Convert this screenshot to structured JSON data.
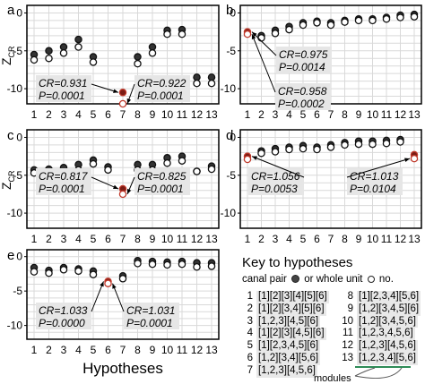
{
  "chart_data": [
    {
      "panel": "a",
      "type": "scatter",
      "ylabel": "Z",
      "ylabel_sub": "CR",
      "x": [
        1,
        2,
        3,
        4,
        5,
        6,
        7,
        8,
        9,
        10,
        11,
        12,
        13
      ],
      "ylim": [
        -12,
        1
      ],
      "yticks": [
        0,
        -5,
        -10
      ],
      "series": [
        {
          "values": [
            -5.5,
            -5.0,
            -4.5,
            -3.5,
            -5.8,
            null,
            -10.5,
            -5.8,
            -4.5,
            -2.3,
            -2.2,
            -8.5,
            -8.5
          ]
        },
        {
          "values": [
            -6.2,
            -6.0,
            -5.3,
            -4.5,
            -6.5,
            null,
            -12.0,
            -6.7,
            -5.3,
            -2.8,
            -2.8,
            -9.3,
            -9.3
          ]
        }
      ],
      "annotations": [
        {
          "text": [
            "CR=0.931",
            "P=0.0001"
          ],
          "target": 7
        },
        {
          "text": [
            "CR=0.922",
            "P=0.0001"
          ],
          "target": 7
        }
      ],
      "highlight_x": 7
    },
    {
      "panel": "b",
      "type": "scatter",
      "ylabel": "",
      "x": [
        1,
        2,
        3,
        4,
        5,
        6,
        7,
        8,
        9,
        10,
        11,
        12,
        13
      ],
      "ylim": [
        -12,
        1
      ],
      "yticks": [
        0,
        -5,
        -10
      ],
      "series": [
        {
          "values": [
            -2.5,
            -3.0,
            -2.3,
            -1.8,
            -1.3,
            -1.1,
            -1.3,
            -1.0,
            -0.8,
            -0.8,
            -0.6,
            -0.3,
            -0.2
          ]
        },
        {
          "values": [
            -2.8,
            -3.3,
            -2.7,
            -2.2,
            -1.6,
            -1.3,
            -1.6,
            -1.2,
            -1.0,
            -1.0,
            -0.8,
            -0.6,
            -0.5
          ]
        }
      ],
      "annotations": [
        {
          "text": [
            "CR=0.975",
            "P=0.0014"
          ],
          "target": 1
        },
        {
          "text": [
            "CR=0.958",
            "P=0.0002"
          ],
          "target": 1
        }
      ],
      "highlight_x": 1
    },
    {
      "panel": "c",
      "type": "scatter",
      "ylabel": "Z",
      "ylabel_sub": "CR",
      "x": [
        1,
        2,
        3,
        4,
        5,
        6,
        7,
        8,
        9,
        10,
        11,
        12,
        13
      ],
      "ylim": [
        -12,
        1
      ],
      "yticks": [
        0,
        -5,
        -10
      ],
      "series": [
        {
          "values": [
            -4.3,
            -4.2,
            -4.0,
            -3.6,
            -3.0,
            -3.9,
            -6.8,
            -3.6,
            -3.6,
            -2.7,
            -2.5,
            -4.5,
            -3.8
          ]
        },
        {
          "values": [
            -4.7,
            -4.7,
            -4.7,
            -4.3,
            -3.5,
            -4.3,
            -7.5,
            -4.3,
            -4.3,
            -3.4,
            -3.1,
            -4.5,
            -4.2
          ]
        }
      ],
      "annotations": [
        {
          "text": [
            "CR=0.817",
            "P=0.0001"
          ],
          "target": 7
        },
        {
          "text": [
            "CR=0.825",
            "P=0.0001"
          ],
          "target": 7
        }
      ],
      "highlight_x": 7
    },
    {
      "panel": "d",
      "type": "scatter",
      "ylabel": "",
      "x": [
        1,
        2,
        3,
        4,
        5,
        6,
        7,
        8,
        9,
        10,
        11,
        12,
        13
      ],
      "ylim": [
        -12,
        1
      ],
      "yticks": [
        0,
        -5,
        -10
      ],
      "series": [
        {
          "values": [
            -2.5,
            -1.8,
            -1.5,
            -1.3,
            -1.1,
            -1.3,
            -1.0,
            -0.7,
            -0.5,
            -0.5,
            -0.4,
            -0.3,
            -2.3
          ]
        },
        {
          "values": [
            -2.9,
            -2.1,
            -1.9,
            -1.6,
            -1.5,
            -1.6,
            -1.3,
            -1.0,
            -0.9,
            -0.9,
            -0.8,
            -0.6,
            -2.8
          ]
        }
      ],
      "annotations": [
        {
          "text": [
            "CR=1.056",
            "P=0.0053"
          ],
          "target": 1
        },
        {
          "text": [
            "CR=1.013",
            "P=0.0104"
          ],
          "target": 13
        }
      ],
      "highlight_x": [
        1,
        13
      ]
    },
    {
      "panel": "e",
      "type": "scatter",
      "ylabel": "",
      "xlabel": "Hypotheses",
      "x": [
        1,
        2,
        3,
        4,
        5,
        6,
        7,
        8,
        9,
        10,
        11,
        12,
        13
      ],
      "ylim": [
        -12,
        1
      ],
      "yticks": [
        0,
        -5,
        -10
      ],
      "series": [
        {
          "values": [
            -1.6,
            -2.0,
            -1.6,
            -1.8,
            -2.1,
            -3.6,
            -2.8,
            -0.6,
            -0.7,
            -0.8,
            -0.7,
            -0.9,
            -0.9
          ]
        },
        {
          "values": [
            -2.2,
            -2.4,
            -1.9,
            -2.1,
            -2.6,
            -3.9,
            -3.2,
            -1.0,
            -1.1,
            -1.2,
            -1.1,
            -1.5,
            -1.4
          ]
        }
      ],
      "annotations": [
        {
          "text": [
            "CR=1.033",
            "P=0.0000"
          ],
          "target": 6
        },
        {
          "text": [
            "CR=1.031",
            "P=0.0001"
          ],
          "target": 6
        }
      ],
      "highlight_x": 6
    }
  ],
  "colors": {
    "highlight": "#c0392b",
    "marker": "#333333",
    "grid": "#d9d9d9",
    "box": "#e6e6e6"
  },
  "key": {
    "title": "Key to hypotheses",
    "legend_canal": "canal pair",
    "legend_or": "or whole unit",
    "legend_no": "no.",
    "rows_left": [
      {
        "n": "1",
        "code": "[1][2][3][4][5][6]"
      },
      {
        "n": "2",
        "code": "[1][2][3,4][5][6]"
      },
      {
        "n": "3",
        "code": "[1,2,3][4,5][6]"
      },
      {
        "n": "4",
        "code": "[1][2][3][4,5][6]"
      },
      {
        "n": "5",
        "code": "[1][2,3,4,5][6]"
      },
      {
        "n": "6",
        "code": "[1,2][3,4][5,6]"
      },
      {
        "n": "7",
        "code": "[1,2,3][4,5,6]"
      }
    ],
    "rows_right": [
      {
        "n": "8",
        "code": "[1][2,3,4][5,6]"
      },
      {
        "n": "9",
        "code": "[1,2][3,4,5][6]"
      },
      {
        "n": "10",
        "code": "[1,2][3,4,5,6]"
      },
      {
        "n": "11",
        "code": "[1,2,3,4,5,6]"
      },
      {
        "n": "12",
        "code": "[1,2,3][4,5,6]"
      },
      {
        "n": "13",
        "code": "[1,2,3,4][5,6]"
      }
    ],
    "modules_label": "modules"
  }
}
